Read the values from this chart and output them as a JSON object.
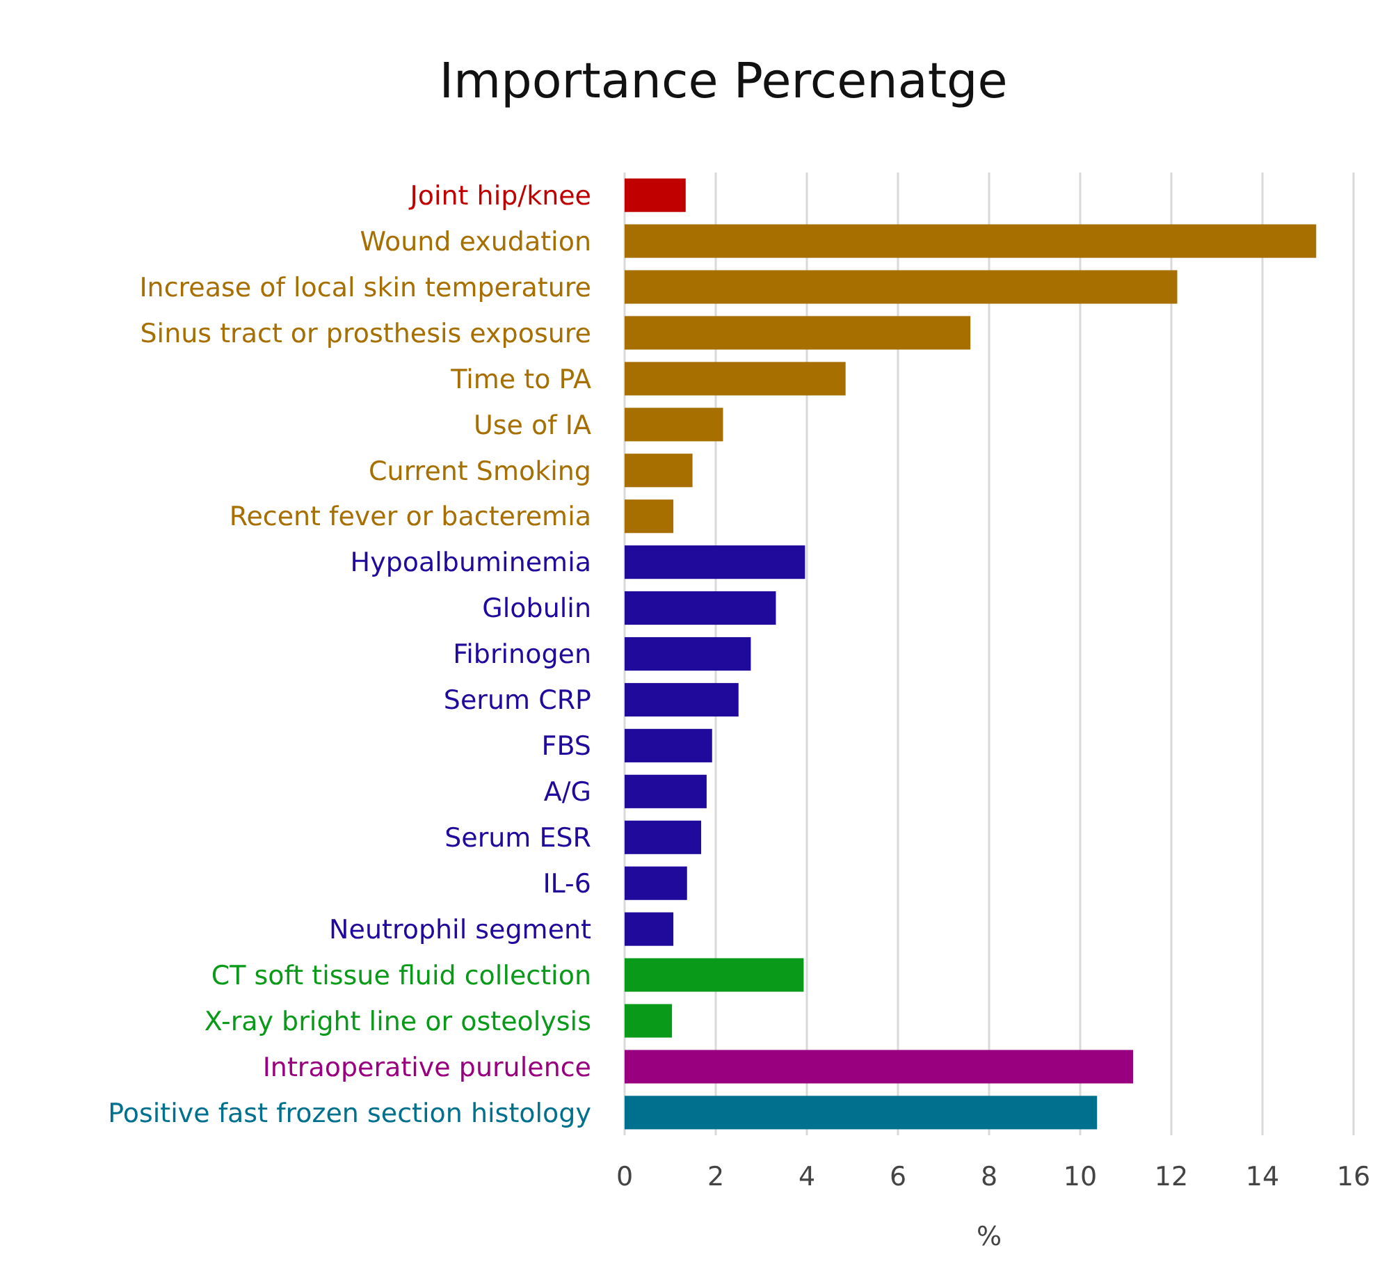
{
  "chart_data": {
    "type": "bar",
    "orientation": "horizontal",
    "title": "Importance Percenatge",
    "xlabel": "%",
    "categories": [
      "Joint hip/knee",
      "Wound exudation",
      "Increase of local skin temperature",
      "Sinus tract or prosthesis exposure",
      "Time to PA",
      "Use of IA",
      "Current Smoking",
      "Recent fever or bacteremia",
      "Hypoalbuminemia",
      "Globulin",
      "Fibrinogen",
      "Serum CRP",
      "FBS",
      "A/G",
      "Serum ESR",
      "IL-6",
      "Neutrophil segment",
      "CT soft tissue fluid collection",
      "X-ray bright line or osteolysis",
      "Intraoperative purulence",
      "Positive fast frozen section histology"
    ],
    "values": [
      1.34,
      15.18,
      12.13,
      7.59,
      4.85,
      2.16,
      1.49,
      1.07,
      3.96,
      3.32,
      2.77,
      2.5,
      1.92,
      1.8,
      1.68,
      1.37,
      1.07,
      3.93,
      1.04,
      11.16,
      10.37
    ],
    "colors": [
      "#c00000",
      "#a66f00",
      "#a66f00",
      "#a66f00",
      "#a66f00",
      "#a66f00",
      "#a66f00",
      "#a66f00",
      "#1f0a9c",
      "#1f0a9c",
      "#1f0a9c",
      "#1f0a9c",
      "#1f0a9c",
      "#1f0a9c",
      "#1f0a9c",
      "#1f0a9c",
      "#1f0a9c",
      "#0a9a1a",
      "#0a9a1a",
      "#990080",
      "#00708f"
    ],
    "xlim": [
      0,
      16
    ],
    "xticks": [
      0,
      2,
      4,
      6,
      8,
      10,
      12,
      14,
      16
    ],
    "grid": "x"
  }
}
